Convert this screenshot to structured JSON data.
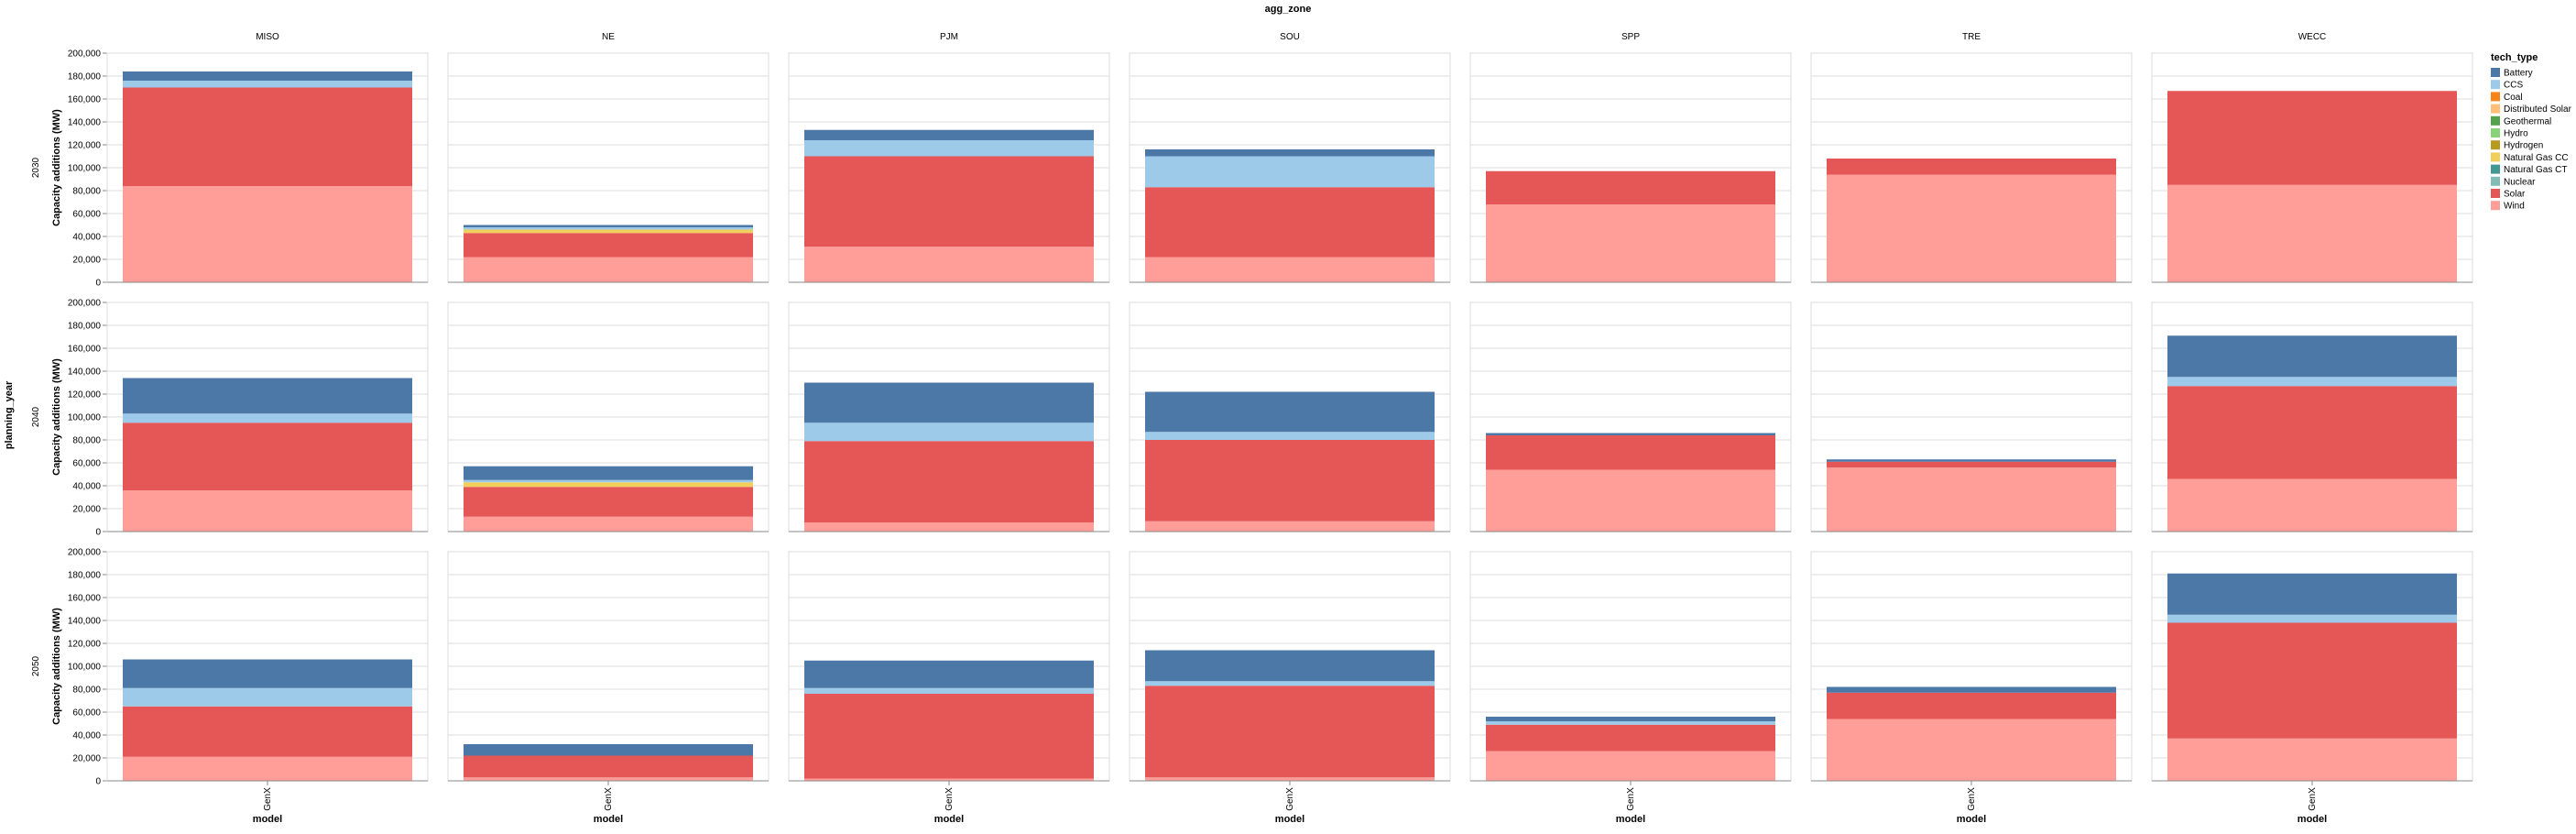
{
  "chart_data": {
    "type": "bar",
    "stacked": true,
    "column_facet_title": "agg_zone",
    "row_facet_title": "planning_year",
    "zones": [
      "MISO",
      "NE",
      "PJM",
      "SOU",
      "SPP",
      "TRE",
      "WECC"
    ],
    "years": [
      "2030",
      "2040",
      "2050"
    ],
    "x_category": "GenX",
    "xlabel": "model",
    "ylabel": "Capacity additions (MW)",
    "ylim": [
      0,
      200000
    ],
    "yticks": [
      0,
      20000,
      40000,
      60000,
      80000,
      100000,
      120000,
      140000,
      160000,
      180000,
      200000
    ],
    "ytick_labels": [
      "0",
      "20,000",
      "40,000",
      "60,000",
      "80,000",
      "100,000",
      "120,000",
      "140,000",
      "160,000",
      "180,000",
      "200,000"
    ],
    "grid": true,
    "legend": {
      "title": "tech_type",
      "position": "right"
    },
    "tech_types": [
      {
        "name": "Battery",
        "color": "#4c78a8"
      },
      {
        "name": "CCS",
        "color": "#9ecae9"
      },
      {
        "name": "Coal",
        "color": "#f58518"
      },
      {
        "name": "Distributed Solar",
        "color": "#ffbf79"
      },
      {
        "name": "Geothermal",
        "color": "#54a24b"
      },
      {
        "name": "Hydro",
        "color": "#88d27a"
      },
      {
        "name": "Hydrogen",
        "color": "#b79a20"
      },
      {
        "name": "Natural Gas CC",
        "color": "#f2cf5b"
      },
      {
        "name": "Natural Gas CT",
        "color": "#439894"
      },
      {
        "name": "Nuclear",
        "color": "#83bcb6"
      },
      {
        "name": "Solar",
        "color": "#e45756"
      },
      {
        "name": "Wind",
        "color": "#ff9d98"
      }
    ],
    "series": [
      {
        "name": "Wind",
        "values": {
          "2030": [
            84000,
            22000,
            31000,
            22000,
            68000,
            94000,
            85000
          ],
          "2040": [
            36000,
            13000,
            8000,
            9000,
            54000,
            56000,
            46000
          ],
          "2050": [
            21000,
            3000,
            2000,
            3000,
            26000,
            54000,
            37000
          ]
        }
      },
      {
        "name": "Solar",
        "values": {
          "2030": [
            86000,
            21000,
            79000,
            61000,
            29000,
            14000,
            82000
          ],
          "2040": [
            59000,
            26000,
            71000,
            71000,
            30000,
            5000,
            81000
          ],
          "2050": [
            44000,
            19000,
            74000,
            80000,
            23000,
            23000,
            101000
          ]
        }
      },
      {
        "name": "Natural Gas CC",
        "values": {
          "2030": [
            0,
            3000,
            0,
            0,
            0,
            0,
            0
          ],
          "2040": [
            0,
            4000,
            0,
            0,
            0,
            0,
            0
          ],
          "2050": [
            0,
            0,
            0,
            0,
            0,
            0,
            0
          ]
        }
      },
      {
        "name": "CCS",
        "values": {
          "2030": [
            6000,
            2000,
            14000,
            27000,
            0,
            0,
            0
          ],
          "2040": [
            8000,
            2000,
            16000,
            7000,
            0,
            0,
            8000
          ],
          "2050": [
            16000,
            0,
            5000,
            4000,
            3000,
            0,
            7000
          ]
        }
      },
      {
        "name": "Battery",
        "values": {
          "2030": [
            8000,
            2000,
            9000,
            6000,
            0,
            0,
            0
          ],
          "2040": [
            31000,
            12000,
            35000,
            35000,
            2000,
            2000,
            36000
          ],
          "2050": [
            25000,
            10000,
            24000,
            27000,
            4000,
            5000,
            36000
          ]
        }
      }
    ]
  }
}
